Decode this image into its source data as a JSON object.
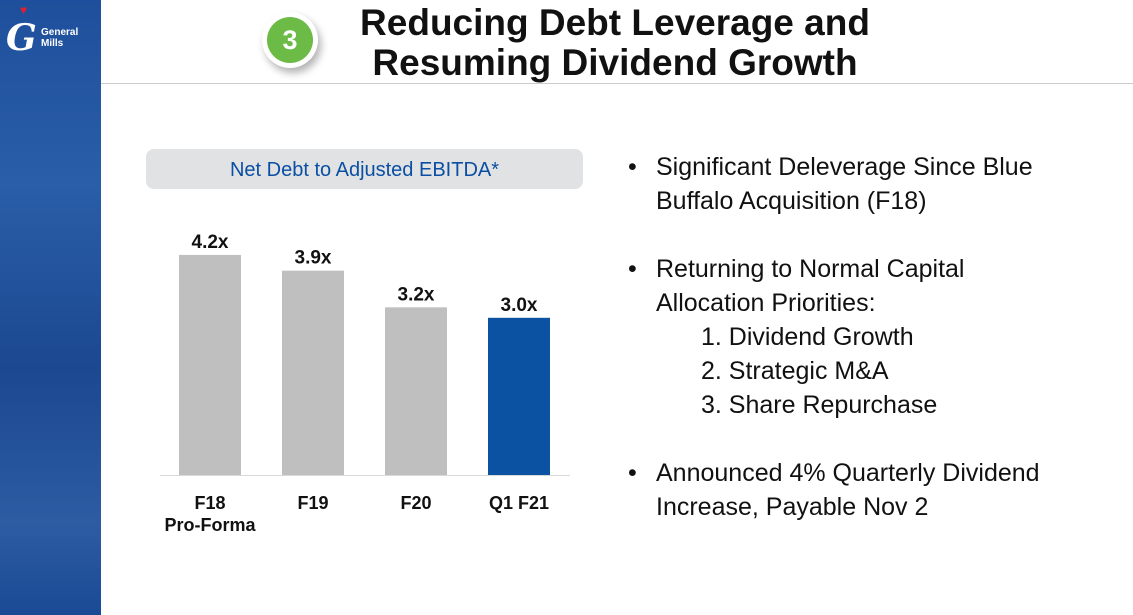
{
  "logo": {
    "text": "General Mills"
  },
  "badge": "3",
  "title": [
    "Reducing Debt Leverage and",
    "Resuming Dividend Growth"
  ],
  "colors": {
    "sidebar": "#1e4f9c",
    "badge": "#6cbb46",
    "bar_default": "#bfbfbf",
    "bar_highlight": "#0b52a3",
    "chart_title": "#0b4fa3"
  },
  "chart_data": {
    "type": "bar",
    "title": "Net Debt to Adjusted EBITDA*",
    "categories": [
      [
        "F18",
        "Pro-Forma"
      ],
      [
        "F19"
      ],
      [
        "F20"
      ],
      [
        "Q1 F21"
      ]
    ],
    "values": [
      4.2,
      3.9,
      3.2,
      3.0
    ],
    "data_labels": [
      "4.2x",
      "3.9x",
      "3.2x",
      "3.0x"
    ],
    "highlight_index": 3,
    "ylim": [
      0,
      4.2
    ],
    "grid": false,
    "xlabel": "",
    "ylabel": ""
  },
  "bullets": [
    {
      "text": [
        "Significant Deleverage Since Blue",
        "Buffalo Acquisition (F18)"
      ]
    },
    {
      "text": [
        "Returning to Normal Capital",
        "Allocation Priorities:"
      ],
      "sub": [
        "1.  Dividend Growth",
        "2.  Strategic M&A",
        "3.  Share Repurchase"
      ]
    },
    {
      "text": [
        "Announced 4% Quarterly Dividend",
        "Increase, Payable Nov 2"
      ]
    }
  ]
}
